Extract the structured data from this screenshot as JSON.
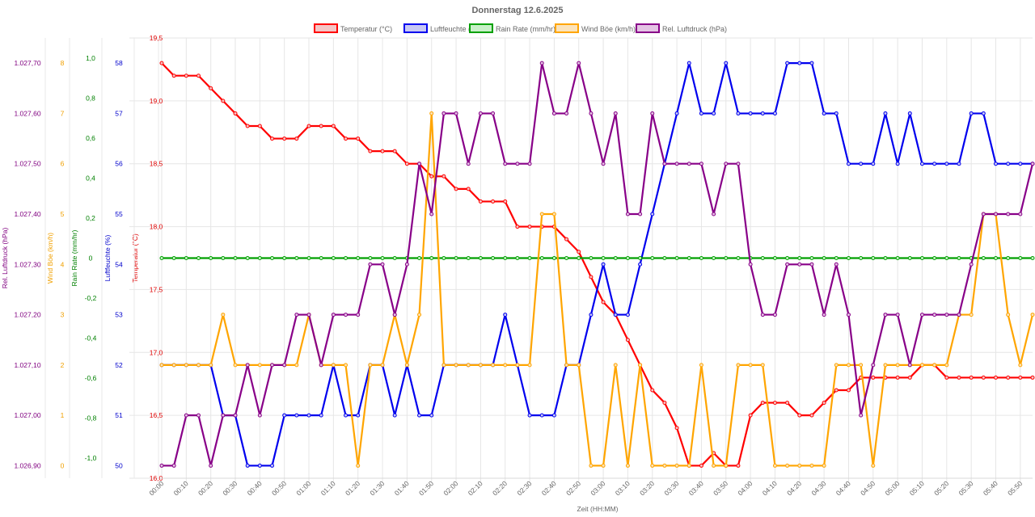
{
  "chart_data": {
    "type": "line",
    "title": "Donnerstag 12.6.2025",
    "xlabel": "Zeit (HH:MM)",
    "x": [
      "00:00",
      "00:05",
      "00:10",
      "00:15",
      "00:20",
      "00:25",
      "00:30",
      "00:35",
      "00:40",
      "00:45",
      "00:50",
      "00:55",
      "01:00",
      "01:05",
      "01:10",
      "01:15",
      "01:20",
      "01:25",
      "01:30",
      "01:35",
      "01:40",
      "01:45",
      "01:50",
      "01:55",
      "02:00",
      "02:05",
      "02:10",
      "02:15",
      "02:20",
      "02:25",
      "02:30",
      "02:35",
      "02:40",
      "02:45",
      "02:50",
      "02:55",
      "03:00",
      "03:05",
      "03:10",
      "03:15",
      "03:20",
      "03:25",
      "03:30",
      "03:35",
      "03:40",
      "03:45",
      "03:50",
      "03:55",
      "04:00",
      "04:05",
      "04:10",
      "04:15",
      "04:20",
      "04:25",
      "04:30",
      "04:35",
      "04:40",
      "04:45",
      "04:50",
      "04:55",
      "05:00",
      "05:05",
      "05:10",
      "05:15",
      "05:20",
      "05:25",
      "05:30",
      "05:35",
      "05:40",
      "05:45",
      "05:50",
      "05:55"
    ],
    "x_tick_labels": [
      "00:00",
      "00:10",
      "00:20",
      "00:30",
      "00:40",
      "00:50",
      "01:00",
      "01:10",
      "01:20",
      "01:30",
      "01:40",
      "01:50",
      "02:00",
      "02:10",
      "02:20",
      "02:30",
      "02:40",
      "02:50",
      "03:00",
      "03:10",
      "03:20",
      "03:30",
      "03:40",
      "03:50",
      "04:00",
      "04:10",
      "04:20",
      "04:30",
      "04:40",
      "04:50",
      "05:00",
      "05:10",
      "05:20",
      "05:30",
      "05:40",
      "05:50"
    ],
    "axes": [
      {
        "id": "temp",
        "label": "Temperatur (°C)",
        "color": "#e00000",
        "min": 16.0,
        "max": 19.5,
        "ticks": [
          "16,0",
          "16,5",
          "17,0",
          "17,5",
          "18,0",
          "18,5",
          "19,0",
          "19,5"
        ]
      },
      {
        "id": "hum",
        "label": "Luftfeuchte (%)",
        "color": "#0000cc",
        "min": 49.75,
        "max": 58.5,
        "ticks": [
          "50",
          "51",
          "52",
          "53",
          "54",
          "55",
          "56",
          "57",
          "58"
        ]
      },
      {
        "id": "rain",
        "label": "Rain Rate (mm/hr)",
        "color": "#008000",
        "min": -1.1,
        "max": 1.1,
        "ticks": [
          "-1,0",
          "-0,8",
          "-0,6",
          "-0,4",
          "-0,2",
          "0",
          "0,2",
          "0,4",
          "0,6",
          "0,8",
          "1,0"
        ]
      },
      {
        "id": "gust",
        "label": "Wind Böe (km/h)",
        "color": "#f0a000",
        "min": -0.25,
        "max": 8.5,
        "ticks": [
          "0",
          "1",
          "2",
          "3",
          "4",
          "5",
          "6",
          "7",
          "8"
        ]
      },
      {
        "id": "press",
        "label": "Rel. Luftdruck (hPa)",
        "color": "#800080",
        "min": 1026.875,
        "max": 1027.75,
        "ticks": [
          "1.026,90",
          "1.027,00",
          "1.027,10",
          "1.027,20",
          "1.027,30",
          "1.027,40",
          "1.027,50",
          "1.027,60",
          "1.027,70"
        ]
      }
    ],
    "series": [
      {
        "name": "Temperatur (°C)",
        "axis": "temp",
        "color": "#ff0000",
        "fill": "#f4c6c6",
        "values": [
          19.3,
          19.2,
          19.2,
          19.2,
          19.1,
          19.0,
          18.9,
          18.8,
          18.8,
          18.7,
          18.7,
          18.7,
          18.8,
          18.8,
          18.8,
          18.7,
          18.7,
          18.6,
          18.6,
          18.6,
          18.5,
          18.5,
          18.4,
          18.4,
          18.3,
          18.3,
          18.2,
          18.2,
          18.2,
          18.0,
          18.0,
          18.0,
          18.0,
          17.9,
          17.8,
          17.6,
          17.4,
          17.3,
          17.1,
          16.9,
          16.7,
          16.6,
          16.4,
          16.1,
          16.1,
          16.2,
          16.1,
          16.1,
          16.5,
          16.6,
          16.6,
          16.6,
          16.5,
          16.5,
          16.6,
          16.7,
          16.7,
          16.8,
          16.8,
          16.8,
          16.8,
          16.8,
          16.9,
          16.9,
          16.8,
          16.8,
          16.8,
          16.8,
          16.8,
          16.8,
          16.8,
          16.8
        ]
      },
      {
        "name": "Luftfeuchte (%)",
        "axis": "hum",
        "color": "#0000ee",
        "fill": "#c8c8f4",
        "values": [
          52,
          52,
          52,
          52,
          52,
          51,
          51,
          50,
          50,
          50,
          51,
          51,
          51,
          51,
          52,
          51,
          51,
          52,
          52,
          51,
          52,
          51,
          51,
          52,
          52,
          52,
          52,
          52,
          53,
          52,
          51,
          51,
          51,
          52,
          52,
          53,
          54,
          53,
          53,
          54,
          55,
          56,
          57,
          58,
          57,
          57,
          58,
          57,
          57,
          57,
          57,
          58,
          58,
          58,
          57,
          57,
          56,
          56,
          56,
          57,
          56,
          57,
          56,
          56,
          56,
          56,
          57,
          57,
          56,
          56,
          56,
          56
        ]
      },
      {
        "name": "Rain Rate (mm/hr)",
        "axis": "rain",
        "color": "#00a000",
        "fill": "#c8f0c8",
        "values": [
          0,
          0,
          0,
          0,
          0,
          0,
          0,
          0,
          0,
          0,
          0,
          0,
          0,
          0,
          0,
          0,
          0,
          0,
          0,
          0,
          0,
          0,
          0,
          0,
          0,
          0,
          0,
          0,
          0,
          0,
          0,
          0,
          0,
          0,
          0,
          0,
          0,
          0,
          0,
          0,
          0,
          0,
          0,
          0,
          0,
          0,
          0,
          0,
          0,
          0,
          0,
          0,
          0,
          0,
          0,
          0,
          0,
          0,
          0,
          0,
          0,
          0,
          0,
          0,
          0,
          0,
          0,
          0,
          0,
          0,
          0,
          0
        ]
      },
      {
        "name": "Wind Böe (km/h)",
        "axis": "gust",
        "color": "#ffa500",
        "fill": "#fbe3bb",
        "values": [
          2,
          2,
          2,
          2,
          2,
          3,
          2,
          2,
          2,
          2,
          2,
          2,
          3,
          2,
          2,
          2,
          0,
          2,
          2,
          3,
          2,
          3,
          7,
          2,
          2,
          2,
          2,
          2,
          2,
          2,
          2,
          5,
          5,
          2,
          2,
          0,
          0,
          2,
          0,
          2,
          0,
          0,
          0,
          0,
          2,
          0,
          0,
          2,
          2,
          2,
          0,
          0,
          0,
          0,
          0,
          2,
          2,
          2,
          0,
          2,
          2,
          2,
          2,
          2,
          2,
          3,
          3,
          5,
          5,
          3,
          2,
          3
        ]
      },
      {
        "name": "Rel. Luftdruck (hPa)",
        "axis": "press",
        "color": "#880088",
        "fill": "#e4c4e4",
        "values": [
          1026.9,
          1026.9,
          1027.0,
          1027.0,
          1026.9,
          1027.0,
          1027.0,
          1027.1,
          1027.0,
          1027.1,
          1027.1,
          1027.2,
          1027.2,
          1027.1,
          1027.2,
          1027.2,
          1027.2,
          1027.3,
          1027.3,
          1027.2,
          1027.3,
          1027.5,
          1027.4,
          1027.6,
          1027.6,
          1027.5,
          1027.6,
          1027.6,
          1027.5,
          1027.5,
          1027.5,
          1027.7,
          1027.6,
          1027.6,
          1027.7,
          1027.6,
          1027.5,
          1027.6,
          1027.4,
          1027.4,
          1027.6,
          1027.5,
          1027.5,
          1027.5,
          1027.5,
          1027.4,
          1027.5,
          1027.5,
          1027.3,
          1027.2,
          1027.2,
          1027.3,
          1027.3,
          1027.3,
          1027.2,
          1027.3,
          1027.2,
          1027.0,
          1027.1,
          1027.2,
          1027.2,
          1027.1,
          1027.2,
          1027.2,
          1027.2,
          1027.2,
          1027.3,
          1027.4,
          1027.4,
          1027.4,
          1027.4,
          1027.5
        ]
      }
    ]
  }
}
